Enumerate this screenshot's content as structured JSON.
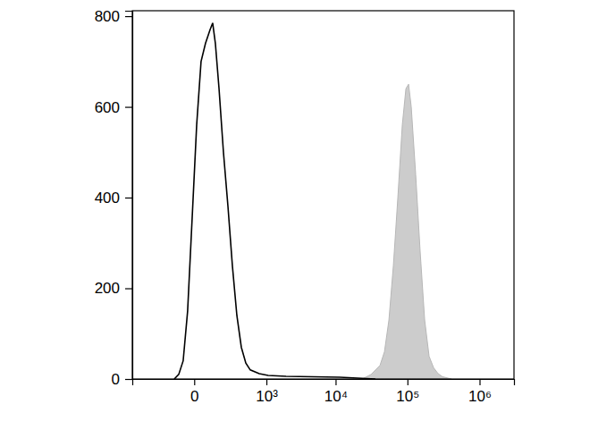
{
  "chart_data": {
    "type": "histogram",
    "log": "x",
    "xlim": [
      -690,
      3000000
    ],
    "xticks": [
      0,
      {
        "value": 1000,
        "label": "10³"
      },
      {
        "value": 10000,
        "label": "10⁴"
      },
      {
        "value": 100000,
        "label": "10⁵"
      },
      {
        "value": 1000000,
        "label": "10⁶"
      }
    ],
    "ylim": [
      0,
      812
    ],
    "yticks": [
      0,
      200,
      400,
      600,
      800
    ],
    "series": [
      {
        "type": "area",
        "color": "#cccccc",
        "x": [
          23500,
          31200,
          41570,
          47960,
          55310,
          63800,
          73600,
          84860,
          95200,
          103700,
          112900,
          130200,
          150200,
          173300,
          199700,
          230400,
          265700,
          306500,
          407700
        ],
        "values": [
          0,
          10,
          30,
          60,
          130,
          250,
          400,
          560,
          640,
          650,
          600,
          450,
          280,
          130,
          50,
          25,
          12,
          5,
          0
        ]
      },
      {
        "type": "line",
        "color": "#000000",
        "x": [
          -99,
          -71,
          -47,
          -26,
          -8,
          9,
          27,
          48,
          73,
          89,
          107,
          134,
          171,
          215,
          264,
          322,
          388,
          465,
          553,
          773,
          1064,
          1968,
          4784,
          11410,
          20260,
          35850
        ],
        "values": [
          0,
          10,
          40,
          150,
          350,
          560,
          700,
          740,
          770,
          785,
          740,
          640,
          500,
          380,
          250,
          140,
          70,
          35,
          20,
          12,
          8,
          6,
          5,
          4,
          2,
          0
        ]
      }
    ]
  }
}
